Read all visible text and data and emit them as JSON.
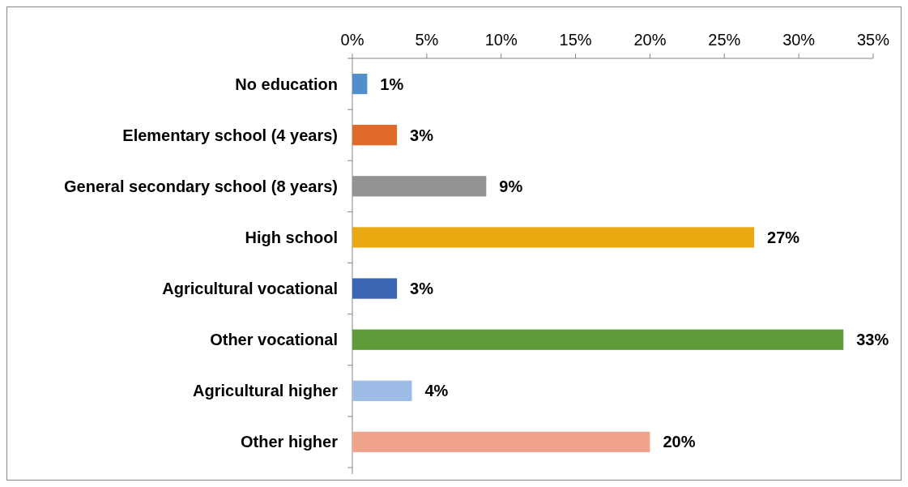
{
  "chart_data": {
    "type": "bar",
    "orientation": "horizontal",
    "categories": [
      "No education",
      "Elementary school (4 years)",
      "General secondary school (8 years)",
      "High school",
      "Agricultural vocational",
      "Other vocational",
      "Agricultural higher",
      "Other higher"
    ],
    "values": [
      1,
      3,
      9,
      27,
      3,
      33,
      4,
      20
    ],
    "colors": [
      "#4f8fcb",
      "#e06a2a",
      "#939393",
      "#e8aa10",
      "#3a66b4",
      "#5c9b37",
      "#9dbde6",
      "#f0a48c"
    ],
    "xlim": [
      0,
      35
    ],
    "xticks": [
      {
        "value": 0,
        "label": "0%"
      },
      {
        "value": 5,
        "label": "5%"
      },
      {
        "value": 10,
        "label": "10%"
      },
      {
        "value": 15,
        "label": "15%"
      },
      {
        "value": 20,
        "label": "20%"
      },
      {
        "value": 25,
        "label": "25%"
      },
      {
        "value": 30,
        "label": "30%"
      },
      {
        "value": 35,
        "label": "35%"
      }
    ],
    "value_labels": [
      "1%",
      "3%",
      "9%",
      "27%",
      "3%",
      "33%",
      "4%",
      "20%"
    ],
    "grid": false
  }
}
